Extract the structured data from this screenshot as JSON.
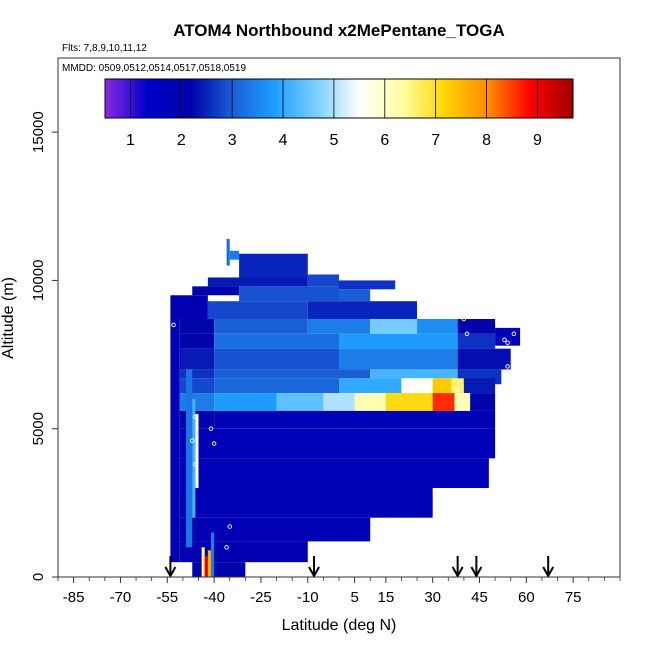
{
  "chart_data": {
    "type": "heatmap",
    "title": "ATOM4 Northbound x2MePentane_TOGA",
    "flights_note": "Flts: 7,8,9,10,11,12",
    "dates_note": "MMDD: 0509,0512,0514,0517,0518,0519",
    "xlabel": "Latitude (deg N)",
    "ylabel": "Altitude (m)",
    "xlim": [
      -90,
      90
    ],
    "ylim": [
      0,
      17500
    ],
    "x_ticks": [
      -85,
      -70,
      -55,
      -40,
      -25,
      -10,
      5,
      15,
      30,
      45,
      60,
      75
    ],
    "y_ticks": [
      0,
      5000,
      10000,
      15000
    ],
    "colorbar": {
      "min": 0.5,
      "max": 9.7,
      "ticks": [
        1,
        2,
        3,
        4,
        5,
        6,
        7,
        8,
        9
      ],
      "colors": [
        "#8a2be2",
        "#0000c8",
        "#0000aa",
        "#1a5fd6",
        "#1ea0ff",
        "#7fd0ff",
        "#ffffff",
        "#ffffa0",
        "#ffd400",
        "#ff8c00",
        "#ff0000",
        "#a00000"
      ]
    },
    "arrows_latitude": [
      -54,
      -8,
      38,
      44,
      67
    ],
    "cells": [
      {
        "x0": -36,
        "x1": -35,
        "y0": 10500,
        "y1": 11400,
        "v": 3.2
      },
      {
        "x0": -35,
        "x1": -32,
        "y0": 10700,
        "y1": 11000,
        "v": 3.4
      },
      {
        "x0": -32,
        "x1": -10,
        "y0": 10000,
        "y1": 10900,
        "v": 2.5
      },
      {
        "x0": -42,
        "x1": -10,
        "y0": 9800,
        "y1": 10100,
        "v": 2.4
      },
      {
        "x0": -10,
        "x1": 0,
        "y0": 9800,
        "y1": 10200,
        "v": 2.8
      },
      {
        "x0": 0,
        "x1": 18,
        "y0": 9700,
        "y1": 10000,
        "v": 2.6
      },
      {
        "x0": -47,
        "x1": -32,
        "y0": 9500,
        "y1": 9800,
        "v": 2.2
      },
      {
        "x0": -32,
        "x1": 0,
        "y0": 9300,
        "y1": 9800,
        "v": 2.9
      },
      {
        "x0": 0,
        "x1": 10,
        "y0": 9300,
        "y1": 9700,
        "v": 3.0
      },
      {
        "x0": -54,
        "x1": -42,
        "y0": 8700,
        "y1": 9500,
        "v": 2.0
      },
      {
        "x0": -42,
        "x1": -10,
        "y0": 8700,
        "y1": 9300,
        "v": 2.8
      },
      {
        "x0": -10,
        "x1": 25,
        "y0": 8700,
        "y1": 9300,
        "v": 2.5
      },
      {
        "x0": -54,
        "x1": -51,
        "y0": 500,
        "y1": 8700,
        "v": 1.8
      },
      {
        "x0": -51,
        "x1": -40,
        "y0": 8200,
        "y1": 8700,
        "v": 2.2
      },
      {
        "x0": -40,
        "x1": -10,
        "y0": 8200,
        "y1": 8700,
        "v": 3.0
      },
      {
        "x0": -10,
        "x1": 10,
        "y0": 8200,
        "y1": 8700,
        "v": 3.4
      },
      {
        "x0": 10,
        "x1": 25,
        "y0": 8200,
        "y1": 8700,
        "v": 4.6
      },
      {
        "x0": 25,
        "x1": 38,
        "y0": 8200,
        "y1": 8700,
        "v": 3.6
      },
      {
        "x0": 38,
        "x1": 50,
        "y0": 8200,
        "y1": 8700,
        "v": 2.2
      },
      {
        "x0": 50,
        "x1": 58,
        "y0": 7800,
        "y1": 8400,
        "v": 1.8
      },
      {
        "x0": -51,
        "x1": -40,
        "y0": 7700,
        "y1": 8200,
        "v": 2.2
      },
      {
        "x0": -40,
        "x1": 0,
        "y0": 7700,
        "y1": 8200,
        "v": 3.2
      },
      {
        "x0": 0,
        "x1": 38,
        "y0": 7700,
        "y1": 8200,
        "v": 3.8
      },
      {
        "x0": 38,
        "x1": 50,
        "y0": 7700,
        "y1": 8200,
        "v": 2.6
      },
      {
        "x0": -51,
        "x1": -40,
        "y0": 7000,
        "y1": 7700,
        "v": 2.4
      },
      {
        "x0": -40,
        "x1": 0,
        "y0": 7000,
        "y1": 7700,
        "v": 2.9
      },
      {
        "x0": 0,
        "x1": 38,
        "y0": 7000,
        "y1": 7700,
        "v": 3.4
      },
      {
        "x0": 38,
        "x1": 55,
        "y0": 7000,
        "y1": 7700,
        "v": 2.3
      },
      {
        "x0": -51,
        "x1": -40,
        "y0": 6700,
        "y1": 7000,
        "v": 2.6
      },
      {
        "x0": -40,
        "x1": 10,
        "y0": 6700,
        "y1": 7000,
        "v": 3.0
      },
      {
        "x0": 10,
        "x1": 38,
        "y0": 6700,
        "y1": 7000,
        "v": 4.2
      },
      {
        "x0": 38,
        "x1": 52,
        "y0": 6500,
        "y1": 7000,
        "v": 2.6
      },
      {
        "x0": -51,
        "x1": -40,
        "y0": 6200,
        "y1": 6700,
        "v": 2.8
      },
      {
        "x0": -40,
        "x1": 0,
        "y0": 6200,
        "y1": 6700,
        "v": 3.1
      },
      {
        "x0": 0,
        "x1": 20,
        "y0": 6200,
        "y1": 6700,
        "v": 4.0
      },
      {
        "x0": 20,
        "x1": 30,
        "y0": 6200,
        "y1": 6700,
        "v": 5.6
      },
      {
        "x0": 30,
        "x1": 36,
        "y0": 6200,
        "y1": 6700,
        "v": 7.3
      },
      {
        "x0": 36,
        "x1": 40,
        "y0": 6200,
        "y1": 6700,
        "v": 6.6
      },
      {
        "x0": 40,
        "x1": 50,
        "y0": 6200,
        "y1": 6700,
        "v": 2.4
      },
      {
        "x0": -51,
        "x1": -40,
        "y0": 5600,
        "y1": 6200,
        "v": 3.4
      },
      {
        "x0": -40,
        "x1": -20,
        "y0": 5600,
        "y1": 6200,
        "v": 3.8
      },
      {
        "x0": -20,
        "x1": -5,
        "y0": 5600,
        "y1": 6200,
        "v": 4.4
      },
      {
        "x0": -5,
        "x1": 5,
        "y0": 5600,
        "y1": 6200,
        "v": 5.0
      },
      {
        "x0": 5,
        "x1": 15,
        "y0": 5600,
        "y1": 6200,
        "v": 6.2
      },
      {
        "x0": 15,
        "x1": 30,
        "y0": 5600,
        "y1": 6200,
        "v": 7.1
      },
      {
        "x0": 30,
        "x1": 37,
        "y0": 5600,
        "y1": 6200,
        "v": 8.6
      },
      {
        "x0": 37,
        "x1": 42,
        "y0": 5600,
        "y1": 6200,
        "v": 6.2
      },
      {
        "x0": 42,
        "x1": 50,
        "y0": 5600,
        "y1": 6200,
        "v": 2.2
      },
      {
        "x0": -51,
        "x1": -40,
        "y0": 5000,
        "y1": 5600,
        "v": 2.2
      },
      {
        "x0": -40,
        "x1": 50,
        "y0": 5000,
        "y1": 5600,
        "v": 1.9
      },
      {
        "x0": -51,
        "x1": 50,
        "y0": 4000,
        "y1": 5000,
        "v": 1.8
      },
      {
        "x0": -51,
        "x1": 48,
        "y0": 3000,
        "y1": 4000,
        "v": 1.85
      },
      {
        "x0": -51,
        "x1": 30,
        "y0": 2000,
        "y1": 3000,
        "v": 1.9
      },
      {
        "x0": -51,
        "x1": 10,
        "y0": 1200,
        "y1": 2000,
        "v": 1.9
      },
      {
        "x0": -51,
        "x1": -10,
        "y0": 500,
        "y1": 1200,
        "v": 2.0
      },
      {
        "x0": -47,
        "x1": -30,
        "y0": 0,
        "y1": 500,
        "v": 2.2
      },
      {
        "x0": -49,
        "x1": -47,
        "y0": 1000,
        "y1": 7000,
        "v": 3.3
      },
      {
        "x0": -47,
        "x1": -46,
        "y0": 2000,
        "y1": 6000,
        "v": 4.2
      },
      {
        "x0": -46,
        "x1": -45,
        "y0": 3000,
        "y1": 5500,
        "v": 5.6
      },
      {
        "x0": -44,
        "x1": -43,
        "y0": 0,
        "y1": 1000,
        "v": 6.5
      },
      {
        "x0": -43,
        "x1": -42,
        "y0": 0,
        "y1": 700,
        "v": 9.0
      },
      {
        "x0": -42,
        "x1": -41,
        "y0": 0,
        "y1": 900,
        "v": 7.6
      },
      {
        "x0": -41,
        "x1": -40,
        "y0": 0,
        "y1": 1500,
        "v": 3.4
      }
    ],
    "points": [
      {
        "lat": -53,
        "alt": 8500
      },
      {
        "lat": -47,
        "alt": 4600
      },
      {
        "lat": -46,
        "alt": 5400
      },
      {
        "lat": -46,
        "alt": 3800
      },
      {
        "lat": -41,
        "alt": 5000
      },
      {
        "lat": -40,
        "alt": 4500
      },
      {
        "lat": -35,
        "alt": 1700
      },
      {
        "lat": -36,
        "alt": 1000
      },
      {
        "lat": 40,
        "alt": 8700
      },
      {
        "lat": 41,
        "alt": 8200
      },
      {
        "lat": 52,
        "alt": 8500
      },
      {
        "lat": 53,
        "alt": 8000
      },
      {
        "lat": 54,
        "alt": 7900
      },
      {
        "lat": 56,
        "alt": 8200
      },
      {
        "lat": 59,
        "alt": 7900
      },
      {
        "lat": 54,
        "alt": 7100
      },
      {
        "lat": 55,
        "alt": 6600
      },
      {
        "lat": 50,
        "alt": 3800
      },
      {
        "lat": 38,
        "alt": 6300
      },
      {
        "lat": 38,
        "alt": 5800
      }
    ]
  }
}
